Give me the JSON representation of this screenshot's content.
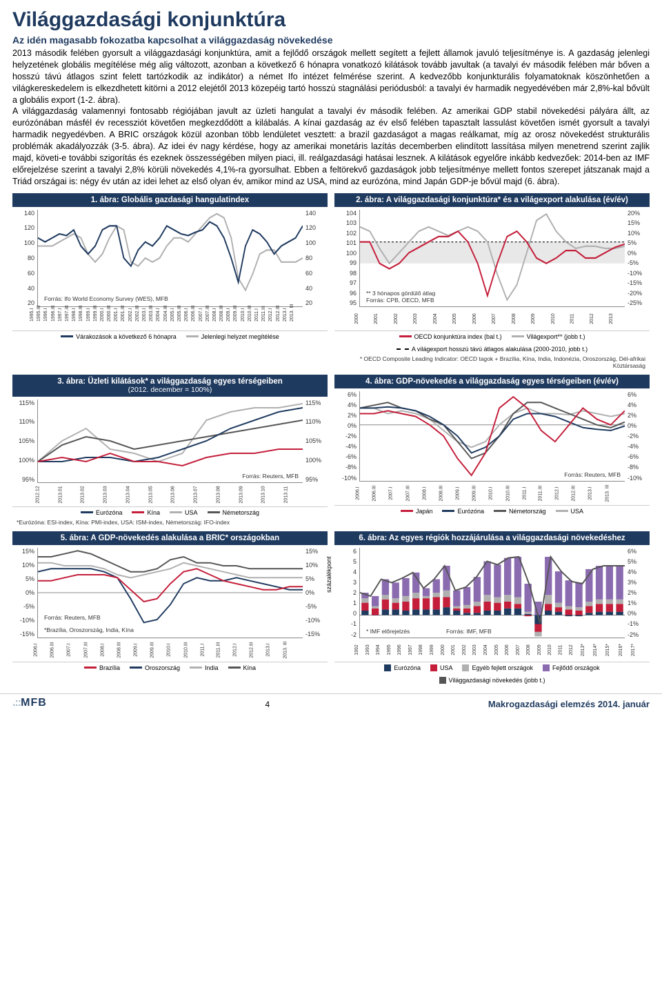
{
  "page": {
    "title": "Világgazdasági konjunktúra",
    "subtitle": "Az idén magasabb fokozatba kapcsolhat a világgazdaság növekedése",
    "body": "2013 második felében gyorsult a világgazdasági konjunktúra, amit a fejlődő országok mellett segített a fejlett államok javuló teljesítménye is. A gazdaság jelenlegi helyzetének globális megítélése még alig változott, azonban a következő 6 hónapra vonatkozó kilátások tovább javultak (a tavalyi év második felében már bőven a hosszú távú átlagos szint felett tartózkodik az indikátor) a német Ifo intézet felmérése szerint. A kedvezőbb konjunkturális folyamatoknak köszönhetően a világkereskedelem is elkezdhetett kitörni a 2012 elejétől 2013 közepéig tartó hosszú stagnálási periódusból: a tavalyi év harmadik negyedévében már 2,8%-kal bővült a globális export (1-2. ábra).\n  A világgazdaság valamennyi fontosabb régiójában javult az üzleti hangulat a tavalyi év második felében. Az amerikai GDP stabil növekedési pályára állt, az eurózónában másfél év recessziót követően megkezdődött a kilábalás. A kínai gazdaság az év első felében tapasztalt lassulást követően ismét gyorsult a tavalyi harmadik negyedévben. A BRIC országok közül azonban több lendületet vesztett: a brazil gazdaságot a magas reálkamat, míg az orosz növekedést strukturális problémák akadályozzák (3-5. ábra). Az idei év nagy kérdése, hogy az amerikai monetáris lazítás decemberben elindított lassítása milyen menetrend szerint zajlik majd, követi-e további szigorítás és ezeknek összességében milyen piaci, ill. reálgazdasági hatásai lesznek. A kilátások egyelőre inkább kedvezőek: 2014-ben az IMF előrejelzése szerint a tavalyi 2,8% körüli növekedés 4,1%-ra gyorsulhat. Ebben a feltörekvő gazdaságok jobb teljesítménye mellett fontos szerepet játszanak majd a Triád országai is: négy év után az idei lehet az első olyan év, amikor mind az USA, mind az eurózóna, mind Japán GDP-je bővül majd (6. ábra).",
    "page_number": "4",
    "logo": "MFB",
    "publication": "Makrogazdasági elemzés 2014. január"
  },
  "colors": {
    "navy": "#1f3a5f",
    "red": "#c41e3a",
    "darkgray": "#555555",
    "lightgray": "#b0b0b0",
    "purple": "#8b6bb0",
    "ltblue": "#a8c8e0"
  },
  "chart1": {
    "title": "1. ábra: Globális gazdasági hangulatindex",
    "yticks": [
      "140",
      "120",
      "100",
      "80",
      "60",
      "40",
      "20"
    ],
    "ylim": [
      20,
      140
    ],
    "xticks": [
      "1995.I",
      "1995.III",
      "1996.I",
      "1996.III",
      "1997.I",
      "1997.III",
      "1998.I",
      "1998.III",
      "1999.I",
      "1999.III",
      "2000.I",
      "2000.III",
      "2001.I",
      "2001.III",
      "2002.I",
      "2002.III",
      "2003.I",
      "2003.III",
      "2004.I",
      "2004.III",
      "2005.I",
      "2005.III",
      "2006.I",
      "2006.III",
      "2007.I",
      "2007.III",
      "2008.I",
      "2008.III",
      "2009.I",
      "2009.III",
      "2010.I",
      "2010.III",
      "2011.I",
      "2011.III",
      "2012.I",
      "2012.III",
      "2013.I",
      "2013. III"
    ],
    "source": "Forrás: Ifo World Economy Survey (WES), MFB",
    "series": {
      "expectations": {
        "label": "Várakozások a következő 6 hónapra",
        "color": "#1f3a5f",
        "values": [
          105,
          100,
          105,
          110,
          108,
          115,
          95,
          85,
          95,
          115,
          120,
          120,
          80,
          70,
          90,
          100,
          95,
          105,
          120,
          115,
          110,
          108,
          112,
          115,
          125,
          120,
          105,
          80,
          50,
          95,
          115,
          110,
          100,
          85,
          95,
          100,
          105,
          120
        ]
      },
      "current": {
        "label": "Jelenlegi helyzet megítélése",
        "color": "#b0b0b0",
        "values": [
          95,
          95,
          95,
          100,
          105,
          110,
          105,
          85,
          75,
          85,
          105,
          120,
          115,
          75,
          70,
          80,
          75,
          80,
          95,
          105,
          105,
          100,
          110,
          120,
          130,
          135,
          130,
          105,
          55,
          40,
          60,
          85,
          90,
          90,
          75,
          75,
          75,
          80
        ]
      }
    }
  },
  "chart2": {
    "title": "2. ábra: A világgazdasági konjunktúra* és a világexport alakulása (év/év)",
    "yl_ticks": [
      "104",
      "103",
      "102",
      "101",
      "100",
      "99",
      "98",
      "97",
      "96",
      "95"
    ],
    "yr_ticks": [
      "20%",
      "15%",
      "10%",
      "5%",
      "0%",
      "-5%",
      "-10%",
      "-15%",
      "-20%",
      "-25%"
    ],
    "xticks": [
      "2000",
      "2001",
      "2002",
      "2003",
      "2004",
      "2005",
      "2006",
      "2007",
      "2008",
      "2009",
      "2010",
      "2011",
      "2012",
      "2013"
    ],
    "note1": "** 3 hónapos gördülő átlag",
    "note2": "Forrás: CPB, OECD, MFB",
    "note3": "* OECD Composite Leading Indicator: OECD tagok + Brazília, Kína, India, Indonézia, Oroszország, Dél-afrikai Köztársaság",
    "legend": [
      {
        "label": "OECD konjunktúra index (bal t.)",
        "color": "#c41e3a"
      },
      {
        "label": "Világexport** (jobb t.)",
        "color": "#b0b0b0"
      },
      {
        "label": "A világexport hosszú távú átlagos alakulása (2000-2010, jobb t.)",
        "style": "dashed"
      }
    ],
    "series": {
      "oecd": {
        "color": "#c41e3a",
        "values": [
          101,
          101,
          99,
          98.5,
          99,
          100,
          100.5,
          101,
          101.5,
          101.5,
          102,
          101,
          99,
          96,
          99,
          101.5,
          102,
          101,
          99.5,
          99,
          99.5,
          100.2,
          100.2,
          99.5,
          99.5,
          100,
          100.5,
          100.8
        ]
      },
      "export": {
        "color": "#b0b0b0",
        "values": [
          12,
          10,
          2,
          -5,
          0,
          5,
          10,
          12,
          10,
          8,
          10,
          12,
          10,
          5,
          -10,
          -22,
          -15,
          0,
          15,
          18,
          10,
          5,
          2,
          3,
          3,
          2,
          2,
          3
        ]
      }
    }
  },
  "chart3": {
    "title": "3. ábra: Üzleti kilátások* a világgazdaság egyes térségeiben",
    "title_sub": "(2012. december = 100%)",
    "yticks": [
      "115%",
      "110%",
      "105%",
      "100%",
      "95%"
    ],
    "xticks": [
      "2012.12",
      "2013.01",
      "2013.02",
      "2013.03",
      "2013.04",
      "2013.05",
      "2013.06",
      "2013.07",
      "2013.08",
      "2013.09",
      "2013.10",
      "2013.11"
    ],
    "source": "Forrás: Reuters, MFB",
    "footnote": "*Eurózóna: ESI-index, Kína: PMI-index, USA: ISM-index, Németország: IFO-index",
    "series": {
      "euro": {
        "label": "Eurózóna",
        "color": "#1f3a5f",
        "values": [
          100,
          100,
          101,
          101,
          100,
          101,
          103,
          105,
          108,
          110,
          112,
          113
        ]
      },
      "china": {
        "label": "Kína",
        "color": "#c41e3a",
        "values": [
          100,
          101,
          100,
          102,
          100,
          100,
          99,
          101,
          102,
          102,
          103,
          103
        ]
      },
      "usa": {
        "label": "USA",
        "color": "#b0b0b0",
        "values": [
          100,
          105,
          108,
          103,
          102,
          100,
          102,
          110,
          112,
          113,
          113,
          114
        ]
      },
      "germany": {
        "label": "Németország",
        "color": "#555555",
        "values": [
          100,
          104,
          106,
          105,
          103,
          104,
          105,
          106,
          107,
          108,
          109,
          110
        ]
      }
    }
  },
  "chart4": {
    "title": "4. ábra: GDP-növekedés a világgazdaság egyes térségeiben (év/év)",
    "yticks": [
      "6%",
      "4%",
      "2%",
      "0%",
      "-2%",
      "-4%",
      "-6%",
      "-8%",
      "-10%"
    ],
    "xticks": [
      "2006.I",
      "2006.III",
      "2007.I",
      "2007.III",
      "2008.I",
      "2008.III",
      "2009.I",
      "2009.III",
      "2010.I",
      "2010.III",
      "2011.I",
      "2011.III",
      "2012.I",
      "2012.III",
      "2013.I",
      "2013. III"
    ],
    "source": "Forrás: Reuters, MFB",
    "series": {
      "japan": {
        "label": "Japán",
        "color": "#c41e3a",
        "values": [
          2,
          2,
          2.5,
          2,
          1.5,
          0,
          -2,
          -6,
          -9,
          -5,
          3,
          5,
          3,
          -1,
          -3,
          0,
          3,
          1,
          0,
          2.5
        ]
      },
      "euro": {
        "label": "Eurózóna",
        "color": "#1f3a5f",
        "values": [
          3,
          3,
          3.2,
          3,
          2.5,
          1.5,
          0,
          -2,
          -5,
          -4,
          -2,
          1,
          2,
          2,
          1.5,
          0.5,
          -0.5,
          -0.8,
          -1,
          -0.2
        ]
      },
      "germany": {
        "label": "Németország",
        "color": "#555555",
        "values": [
          3,
          3.5,
          4,
          3,
          2.5,
          1,
          0,
          -3,
          -6,
          -5,
          -2,
          2,
          4,
          4,
          3,
          2,
          1,
          0,
          -0.5,
          0.5
        ]
      },
      "usa": {
        "label": "USA",
        "color": "#b0b0b0",
        "values": [
          3,
          3,
          2,
          2.5,
          2,
          1,
          -1,
          -3,
          -4,
          -3,
          0,
          2,
          3,
          2,
          2,
          1.8,
          2.5,
          2,
          1.5,
          2
        ]
      }
    }
  },
  "chart5": {
    "title": "5. ábra: A GDP-növekedés alakulása a BRIC* országokban",
    "yticks": [
      "15%",
      "10%",
      "5%",
      "0%",
      "-5%",
      "-10%",
      "-15%"
    ],
    "xticks": [
      "2006.I",
      "2006.III",
      "2007.I",
      "2007.III",
      "2008.I",
      "2008.III",
      "2009.I",
      "2009.III",
      "2010.I",
      "2010.III",
      "2011.I",
      "2011.III",
      "2012.I",
      "2012.III",
      "2013.I",
      "2013. III"
    ],
    "source": "Forrás: Reuters, MFB",
    "footnote": "*Brazília, Oroszország, India, Kína",
    "series": {
      "brazil": {
        "label": "Brazília",
        "color": "#c41e3a",
        "values": [
          4,
          4,
          5,
          6,
          6,
          6,
          5,
          1,
          -3,
          -2,
          3,
          7,
          8,
          6,
          4,
          3,
          2,
          1,
          1,
          2,
          2
        ]
      },
      "russia": {
        "label": "Oroszország",
        "color": "#1f3a5f",
        "values": [
          7,
          8,
          8,
          8,
          8,
          7,
          5,
          -2,
          -10,
          -9,
          -4,
          3,
          5,
          4,
          4,
          5,
          4,
          3,
          2,
          1,
          1
        ]
      },
      "india": {
        "label": "India",
        "color": "#b0b0b0",
        "values": [
          10,
          10,
          9,
          9,
          9,
          8,
          6,
          5,
          6,
          7,
          8,
          10,
          9,
          8,
          7,
          6,
          5,
          5,
          5,
          5,
          5
        ]
      },
      "china": {
        "label": "Kína",
        "color": "#555555",
        "values": [
          12,
          12,
          13,
          14,
          13,
          11,
          9,
          7,
          7,
          8,
          11,
          12,
          10,
          10,
          9,
          9,
          8,
          8,
          8,
          8,
          8
        ]
      }
    }
  },
  "chart6": {
    "title": "6. ábra: Az egyes régiók hozzájárulása a világgazdasági növekedéshez",
    "yl_ticks": [
      "6",
      "5",
      "4",
      "3",
      "2",
      "1",
      "0",
      "-1",
      "-2"
    ],
    "yr_ticks": [
      "6%",
      "5%",
      "4%",
      "3%",
      "2%",
      "1%",
      "0%",
      "-1%",
      "-2%"
    ],
    "yl_label": "százalékpont",
    "xticks": [
      "1992",
      "1993",
      "1994",
      "1995",
      "1996",
      "1997",
      "1998",
      "1999",
      "2000",
      "2001",
      "2002",
      "2003",
      "2004",
      "2005",
      "2006",
      "2007",
      "2008",
      "2009",
      "2010",
      "2011",
      "2012",
      "2013*",
      "2014*",
      "2015*",
      "2016*",
      "2017*"
    ],
    "note1": "* IMF előrejelzés",
    "note2": "Forrás: IMF, MFB",
    "legend": [
      {
        "label": "Eurózóna",
        "color": "#1f3a5f"
      },
      {
        "label": "USA",
        "color": "#c41e3a"
      },
      {
        "label": "Egyéb fejlett országok",
        "color": "#b0b0b0"
      },
      {
        "label": "Fejlődő országok",
        "color": "#8b6bb0"
      },
      {
        "label": "Világgazdasági növekedés (jobb t.)",
        "color": "#555555"
      }
    ],
    "stacks": {
      "euro": [
        0.4,
        0.0,
        0.5,
        0.5,
        0.4,
        0.5,
        0.5,
        0.5,
        0.7,
        0.4,
        0.2,
        0.2,
        0.4,
        0.4,
        0.6,
        0.6,
        0.1,
        -0.8,
        0.4,
        0.3,
        -0.1,
        -0.1,
        0.2,
        0.3,
        0.3,
        0.3
      ],
      "usa": [
        0.7,
        0.6,
        0.9,
        0.6,
        0.8,
        1.0,
        1.0,
        1.1,
        0.9,
        0.2,
        0.4,
        0.6,
        0.8,
        0.7,
        0.6,
        0.4,
        -0.1,
        -0.7,
        0.6,
        0.4,
        0.5,
        0.4,
        0.6,
        0.7,
        0.7,
        0.7
      ],
      "other": [
        0.4,
        0.2,
        0.4,
        0.4,
        0.5,
        0.5,
        0.2,
        0.4,
        0.6,
        0.2,
        0.3,
        0.4,
        0.6,
        0.5,
        0.6,
        0.6,
        0.2,
        -0.4,
        0.8,
        0.4,
        0.3,
        0.3,
        0.4,
        0.4,
        0.4,
        0.4
      ],
      "emerg": [
        0.5,
        0.9,
        1.4,
        1.4,
        1.6,
        1.8,
        0.7,
        1.2,
        2.2,
        1.4,
        1.6,
        2.2,
        3.0,
        2.9,
        3.3,
        3.6,
        2.5,
        1.2,
        3.4,
        2.8,
        2.3,
        2.2,
        2.9,
        3.0,
        3.0,
        3.0
      ],
      "world": [
        2.0,
        1.7,
        3.2,
        2.9,
        3.3,
        3.8,
        2.4,
        3.2,
        4.4,
        2.2,
        2.5,
        3.4,
        4.8,
        4.5,
        5.1,
        5.2,
        2.7,
        -0.7,
        5.2,
        3.9,
        3.0,
        2.8,
        4.1,
        4.4,
        4.4,
        4.4
      ]
    }
  }
}
